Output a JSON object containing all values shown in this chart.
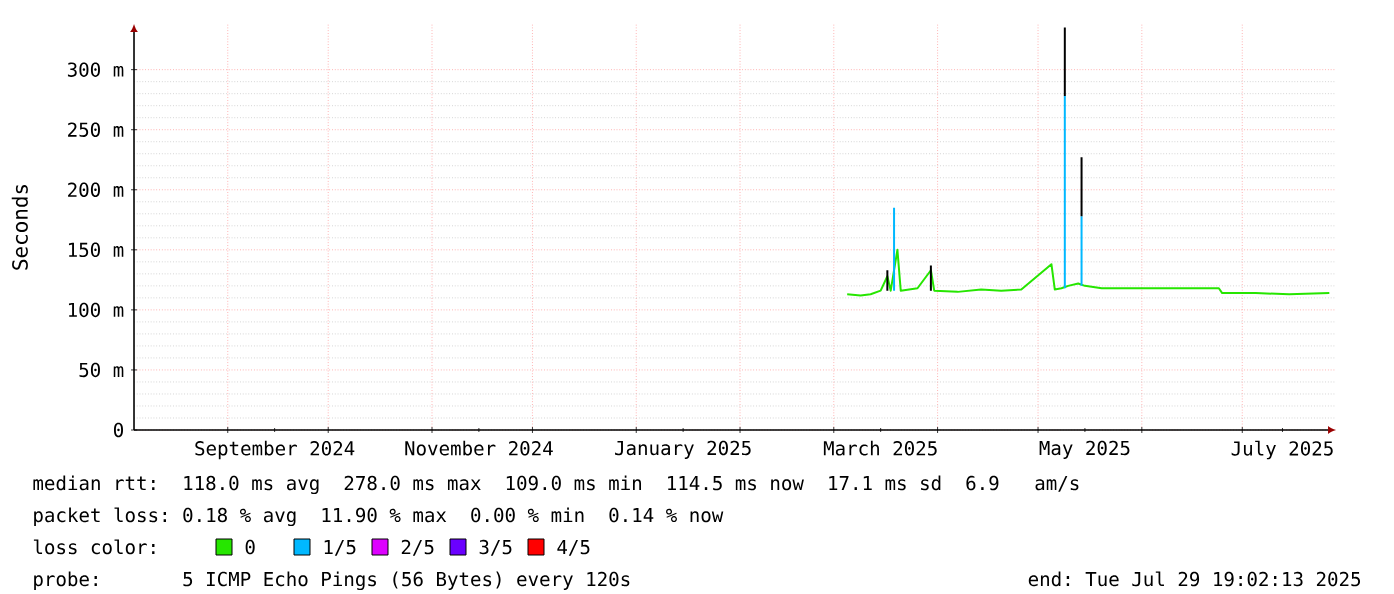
{
  "chart_data": {
    "type": "line",
    "ylabel": "Seconds",
    "legend_title": "loss color:",
    "legend": "bottom",
    "grid": true,
    "line_style": "solid",
    "marker": "none",
    "xlim": [
      "2024-08-04",
      "2025-07-29"
    ],
    "xticks": [
      {
        "value": "2024-09-01",
        "label": null
      },
      {
        "value": "2024-10-01",
        "label": null
      },
      {
        "value": "2024-11-01",
        "label": null
      },
      {
        "value": "2024-12-01",
        "label": null
      },
      {
        "value": "2025-01-01",
        "label": null
      },
      {
        "value": "2025-02-01",
        "label": null
      },
      {
        "value": "2025-03-01",
        "label": null
      },
      {
        "value": "2025-04-01",
        "label": null
      },
      {
        "value": "2025-05-01",
        "label": null
      },
      {
        "value": "2025-06-01",
        "label": null
      },
      {
        "value": "2025-07-01",
        "label": null
      },
      {
        "value": "2024-09-15",
        "label": "September 2024"
      },
      {
        "value": "2024-11-15",
        "label": "November 2024"
      },
      {
        "value": "2025-01-15",
        "label": "January 2025"
      },
      {
        "value": "2025-03-15",
        "label": "March 2025"
      },
      {
        "value": "2025-05-15",
        "label": "May 2025"
      },
      {
        "value": "2025-07-13",
        "label": "July 2025"
      }
    ],
    "ylim": [
      0,
      338
    ],
    "yticks": [
      0,
      {
        "value": 50,
        "label": "50 m"
      },
      {
        "value": 100,
        "label": "100 m"
      },
      {
        "value": 150,
        "label": "150 m"
      },
      {
        "value": 200,
        "label": "200 m"
      },
      {
        "value": 250,
        "label": "250 m"
      },
      {
        "value": 300,
        "label": "300 m"
      }
    ],
    "series": [
      {
        "name": "0",
        "color": "#26e600",
        "x": [
          "2025-03-05",
          "2025-03-09",
          "2025-03-12",
          "2025-03-15",
          "2025-03-17",
          "2025-03-18",
          "2025-03-20",
          "2025-03-21",
          "2025-03-26",
          "2025-03-30",
          "2025-03-31",
          "2025-04-07",
          "2025-04-14",
          "2025-04-20",
          "2025-04-26",
          "2025-05-05",
          "2025-05-06",
          "2025-05-08",
          "2025-05-10",
          "2025-05-13",
          "2025-05-15",
          "2025-05-20",
          "2025-06-01",
          "2025-06-10",
          "2025-06-24",
          "2025-06-25",
          "2025-07-05",
          "2025-07-15",
          "2025-07-27"
        ],
        "values": [
          113,
          112,
          113,
          116,
          128,
          116,
          150,
          116,
          118,
          133,
          116,
          115,
          117,
          116,
          117,
          138,
          117,
          118,
          120,
          122,
          120,
          118,
          118,
          118,
          118,
          114,
          114,
          113,
          114
        ]
      },
      {
        "name": "1/5",
        "color": "#00b8ff",
        "x": [
          "2025-03-19",
          "2025-03-19",
          null,
          "2025-05-09",
          "2025-05-09",
          null,
          "2025-05-14",
          "2025-05-14"
        ],
        "values": [
          116,
          185,
          null,
          118,
          278,
          null,
          120,
          178
        ]
      },
      {
        "color": "#000000",
        "x": [
          "2025-03-17",
          "2025-03-17",
          null,
          "2025-03-30",
          "2025-03-30",
          null,
          "2025-05-09",
          "2025-05-09",
          null,
          "2025-05-14",
          "2025-05-14"
        ],
        "values": [
          116,
          133,
          null,
          116,
          137,
          null,
          278,
          335,
          null,
          178,
          227
        ]
      },
      {
        "name": "2/5",
        "color": "#dd00ff"
      },
      {
        "name": "3/5",
        "color": "#6a00ff"
      },
      {
        "name": "4/5",
        "color": "#ff0000"
      }
    ],
    "annotations": [
      "median rtt:  118.0 ms avg  278.0 ms max  109.0 ms min  114.5 ms now  17.1 ms sd  6.9   am/s",
      "packet loss: 0.18 % avg  11.90 % max  0.00 % min  0.14 % now",
      "probe:       5 ICMP Echo Pings (56 Bytes) every 120s",
      "end: Tue Jul 29 19:02:13 2025"
    ]
  }
}
